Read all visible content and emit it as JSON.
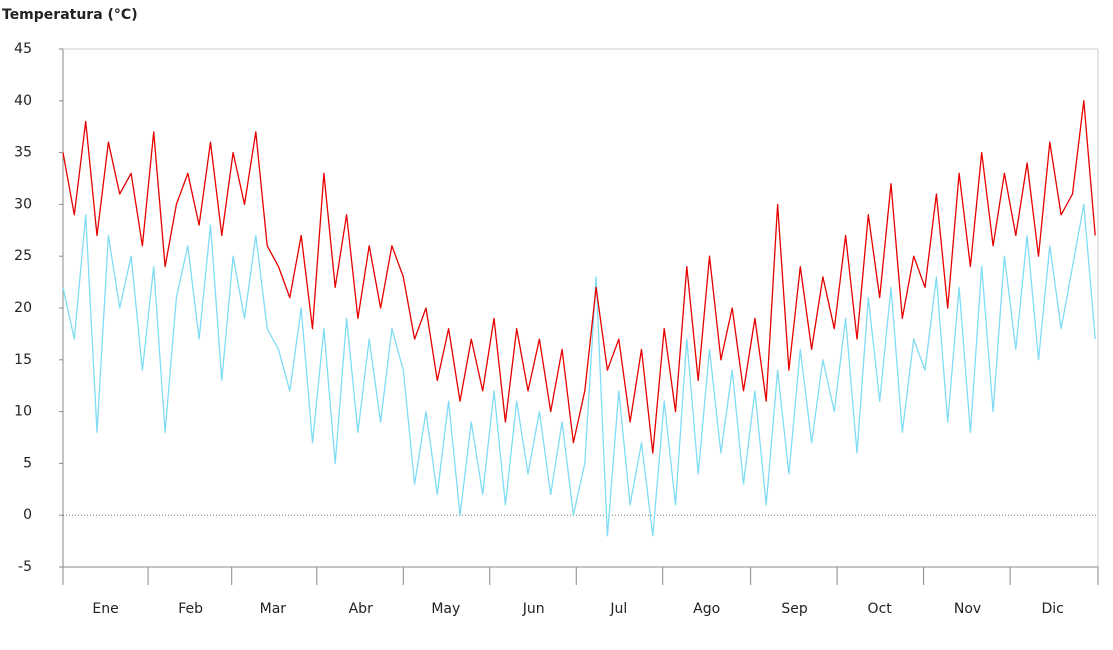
{
  "chart_data": {
    "type": "line",
    "y_label": "Temperatura (°C)",
    "x": [
      1,
      5,
      9,
      13,
      17,
      21,
      25,
      29,
      33,
      37,
      41,
      45,
      49,
      53,
      57,
      61,
      65,
      69,
      73,
      77,
      81,
      85,
      89,
      93,
      97,
      101,
      105,
      109,
      113,
      117,
      121,
      125,
      129,
      133,
      137,
      141,
      145,
      149,
      153,
      157,
      161,
      165,
      169,
      173,
      177,
      181,
      185,
      189,
      193,
      197,
      201,
      205,
      209,
      213,
      217,
      221,
      225,
      229,
      233,
      237,
      241,
      245,
      249,
      253,
      257,
      261,
      265,
      269,
      273,
      277,
      281,
      285,
      289,
      293,
      297,
      301,
      305,
      309,
      313,
      317,
      321,
      325,
      329,
      333,
      337,
      341,
      345,
      349,
      353,
      357,
      361,
      365
    ],
    "xlim": [
      1,
      366
    ],
    "xticks": [
      {
        "value": 16,
        "label": "Ene"
      },
      {
        "value": 46,
        "label": "Feb"
      },
      {
        "value": 75,
        "label": "Mar"
      },
      {
        "value": 106,
        "label": "Abr"
      },
      {
        "value": 136,
        "label": "May"
      },
      {
        "value": 167,
        "label": "Jun"
      },
      {
        "value": 197,
        "label": "Jul"
      },
      {
        "value": 228,
        "label": "Ago"
      },
      {
        "value": 259,
        "label": "Sep"
      },
      {
        "value": 289,
        "label": "Oct"
      },
      {
        "value": 320,
        "label": "Nov"
      },
      {
        "value": 350,
        "label": "Dic"
      }
    ],
    "ylim": [
      -5,
      45
    ],
    "yticks": [
      -5,
      0,
      5,
      10,
      15,
      20,
      25,
      30,
      35,
      40,
      45
    ],
    "zero_line": true,
    "series": [
      {
        "color": "#7fdcf5",
        "values": [
          22,
          17,
          29,
          8,
          27,
          20,
          25,
          14,
          24,
          8,
          21,
          26,
          17,
          28,
          13,
          25,
          19,
          27,
          18,
          16,
          12,
          20,
          7,
          18,
          5,
          19,
          8,
          17,
          9,
          18,
          14,
          3,
          10,
          2,
          11,
          0,
          9,
          2,
          12,
          1,
          11,
          4,
          10,
          2,
          9,
          0,
          5,
          23,
          -2,
          12,
          1,
          7,
          -2,
          11,
          1,
          17,
          4,
          16,
          6,
          14,
          3,
          12,
          1,
          14,
          4,
          16,
          7,
          15,
          10,
          19,
          6,
          21,
          11,
          22,
          8,
          17,
          14,
          23,
          9,
          22,
          8,
          24,
          10,
          25,
          16,
          27,
          15,
          26,
          18,
          24,
          30,
          17
        ]
      },
      {
        "color": "#e60000",
        "values": [
          35,
          29,
          38,
          27,
          36,
          31,
          33,
          26,
          37,
          24,
          30,
          33,
          28,
          36,
          27,
          35,
          30,
          37,
          26,
          24,
          21,
          27,
          18,
          33,
          22,
          29,
          19,
          26,
          20,
          26,
          23,
          17,
          20,
          13,
          18,
          11,
          17,
          12,
          19,
          9,
          18,
          12,
          17,
          10,
          16,
          7,
          12,
          22,
          14,
          17,
          9,
          16,
          6,
          18,
          10,
          24,
          13,
          25,
          15,
          20,
          12,
          19,
          11,
          30,
          14,
          24,
          16,
          23,
          18,
          27,
          17,
          29,
          21,
          32,
          19,
          25,
          22,
          31,
          20,
          33,
          24,
          35,
          26,
          33,
          27,
          34,
          25,
          36,
          29,
          31,
          40,
          27
        ]
      }
    ]
  }
}
